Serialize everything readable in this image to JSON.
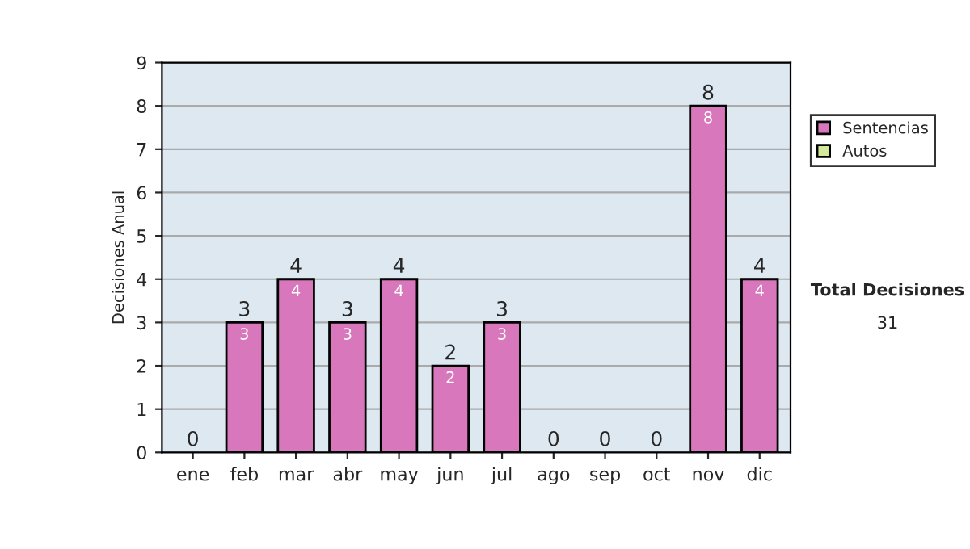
{
  "chart_data": {
    "type": "bar",
    "ylabel": "Decisiones Anual",
    "categories": [
      "ene",
      "feb",
      "mar",
      "abr",
      "may",
      "jun",
      "jul",
      "ago",
      "sep",
      "oct",
      "nov",
      "dic"
    ],
    "series": [
      {
        "name": "Sentencias",
        "color": "#d977bd",
        "values": [
          0,
          3,
          4,
          3,
          4,
          2,
          3,
          0,
          0,
          0,
          8,
          4
        ],
        "value_labels": [
          null,
          "3",
          "4",
          "3",
          "4",
          "2",
          "3",
          null,
          null,
          null,
          "8",
          "4"
        ]
      },
      {
        "name": "Autos",
        "color": "#d4e89a",
        "values": [
          0,
          0,
          0,
          0,
          0,
          0,
          0,
          0,
          0,
          0,
          0,
          0
        ]
      }
    ],
    "stacked": true,
    "totals": [
      "0",
      "3",
      "4",
      "3",
      "4",
      "2",
      "3",
      "0",
      "0",
      "0",
      "8",
      "4"
    ],
    "ylim": [
      0,
      9
    ],
    "yticks": [
      0,
      1,
      2,
      3,
      4,
      5,
      6,
      7,
      8,
      9
    ],
    "grid": "y",
    "legend": "right",
    "annotations": [
      "Total Decisiones",
      "31"
    ]
  }
}
